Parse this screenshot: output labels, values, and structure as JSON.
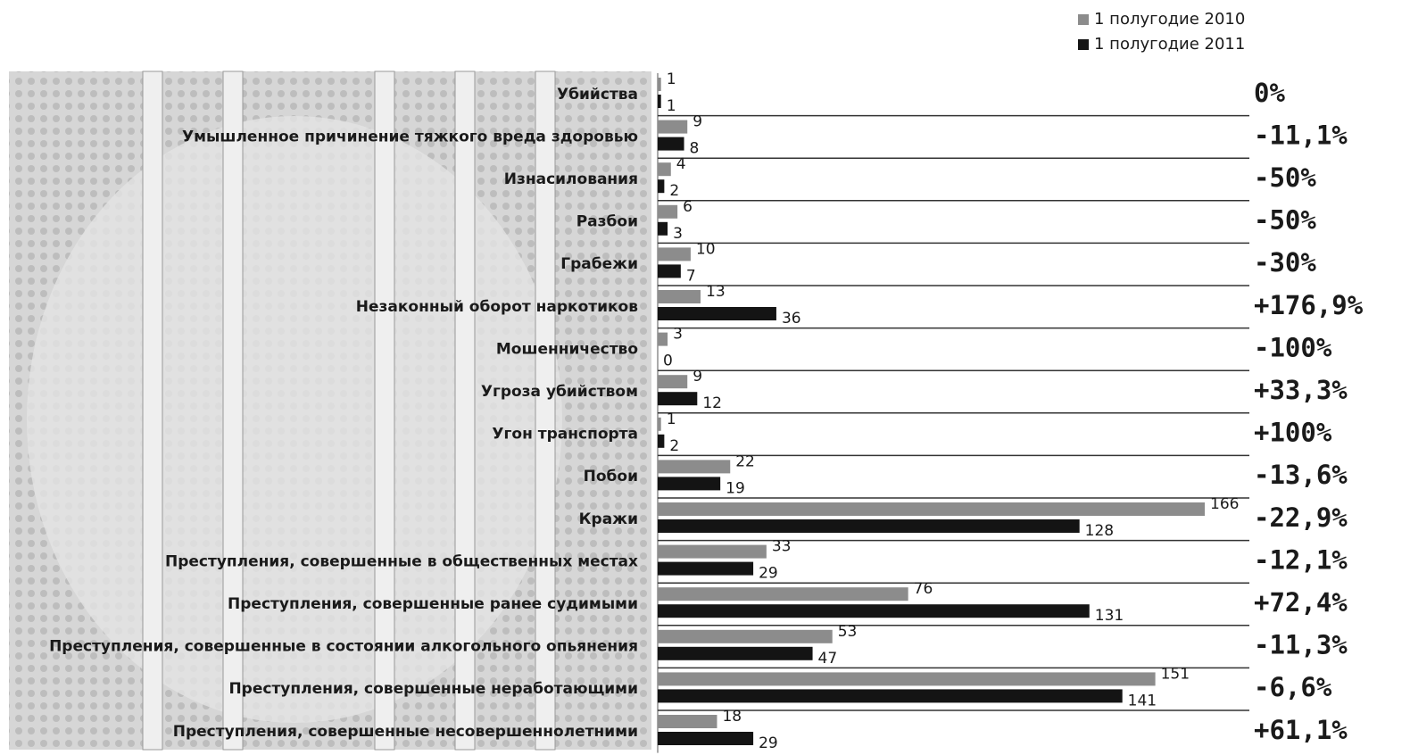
{
  "chart_data": {
    "type": "bar",
    "orientation": "horizontal",
    "categories": [
      "Убийства",
      "Умышленное причинение тяжкого вреда здоровью",
      "Изнасилования",
      "Разбои",
      "Грабежи",
      "Незаконный оборот наркотиков",
      "Мошенничество",
      "Угроза убийством",
      "Угон транспорта",
      "Побои",
      "Кражи",
      "Преступления, совершенные в общественных местах",
      "Преступления, совершенные ранее судимыми",
      "Преступления, совершенные в состоянии алкогольного опьянения",
      "Преступления, совершенные неработающими",
      "Преступления, совершенные несовершеннолетними"
    ],
    "series": [
      {
        "name": "1 полугодие 2010",
        "color": "#8c8c8c",
        "values": [
          1,
          9,
          4,
          6,
          10,
          13,
          3,
          9,
          1,
          22,
          166,
          33,
          76,
          53,
          151,
          18
        ]
      },
      {
        "name": "1 полугодие 2011",
        "color": "#141414",
        "values": [
          1,
          8,
          2,
          3,
          7,
          36,
          0,
          12,
          2,
          19,
          128,
          29,
          131,
          47,
          141,
          29
        ]
      }
    ],
    "changes": [
      "0%",
      "-11,1%",
      "-50%",
      "-50%",
      "-30%",
      "+176,9%",
      "-100%",
      "+33,3%",
      "+100%",
      "-13,6%",
      "-22,9%",
      "-12,1%",
      "+72,4%",
      "-11,3%",
      "-6,6%",
      "+61,1%"
    ]
  }
}
